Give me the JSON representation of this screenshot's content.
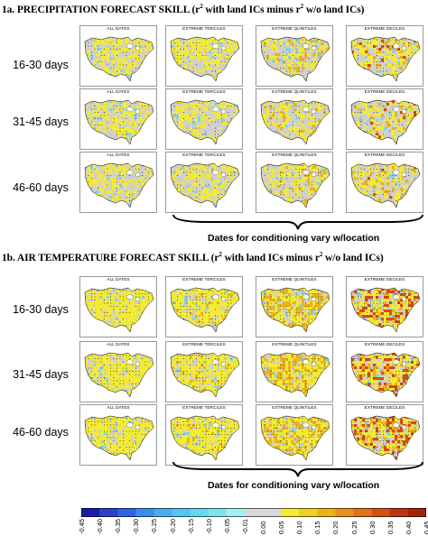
{
  "section_a": {
    "label": "1a. PRECIPITATION FORECAST SKILL (r",
    "sup1": "2",
    "mid": " with land ICs  minus  r",
    "sup2": "2",
    "end": " w/o land ICs)"
  },
  "section_b": {
    "label": "1b. AIR TEMPERATURE FORECAST SKILL (r",
    "sup1": "2",
    "mid": " with land ICs  minus  r",
    "sup2": "2",
    "end": " w/o land ICs)"
  },
  "row_labels": [
    "16-30 days",
    "31-45 days",
    "46-60 days"
  ],
  "panel_titles": [
    "ALL DATES",
    "EXTREME TERCILES",
    "EXTREME QUINTILES",
    "EXTREME DECILES"
  ],
  "brace_label": "Dates for conditioning vary w/location",
  "colorbar": {
    "ticks": [
      "-0.45",
      "-0.40",
      "-0.35",
      "-0.30",
      "-0.25",
      "-0.20",
      "-0.15",
      "-0.10",
      "-0.05",
      "-0.01",
      "0.00",
      "0.05",
      "0.10",
      "0.15",
      "0.20",
      "0.25",
      "0.30",
      "0.35",
      "0.40",
      "0.45"
    ],
    "colors": [
      "#1a1aa8",
      "#2a3ed0",
      "#2f63e6",
      "#3b8bf0",
      "#46aef2",
      "#52c6f0",
      "#62d8ee",
      "#7ee4f0",
      "#a6eef3",
      "#d9d9d9",
      "#d9d9d9",
      "#f4ec32",
      "#f0d021",
      "#ecb21b",
      "#e89118",
      "#e27015",
      "#d55012",
      "#c3330f",
      "#a8200c"
    ]
  },
  "colors": {
    "land": "#cfcfcf",
    "ocean": "#ffffff",
    "weak": "#f2ea34",
    "mid": "#ecb21b",
    "strong": "#d94a12",
    "negative": "#7fd3ef"
  }
}
